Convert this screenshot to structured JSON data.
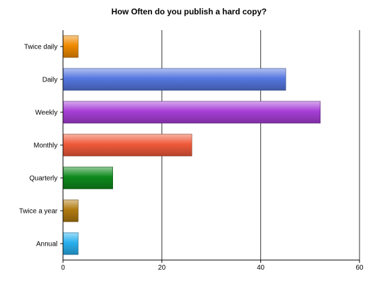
{
  "chart_data": {
    "type": "bar",
    "orientation": "horizontal",
    "title": "How Often do you publish a hard copy?",
    "categories": [
      "Twice daily",
      "Daily",
      "Weekly",
      "Monthly",
      "Quarterly",
      "Twice a year",
      "Annual"
    ],
    "values": [
      3,
      45,
      52,
      26,
      10,
      3,
      3
    ],
    "colors": [
      "#f08a00",
      "#5577e0",
      "#a63fd6",
      "#f05a3a",
      "#0e8a1c",
      "#b07a10",
      "#29b0ef"
    ],
    "xlim": [
      0,
      60
    ],
    "xticks": [
      0,
      20,
      40,
      60
    ],
    "xlabel": "",
    "ylabel": "",
    "grid": "vertical",
    "legend": "none"
  }
}
